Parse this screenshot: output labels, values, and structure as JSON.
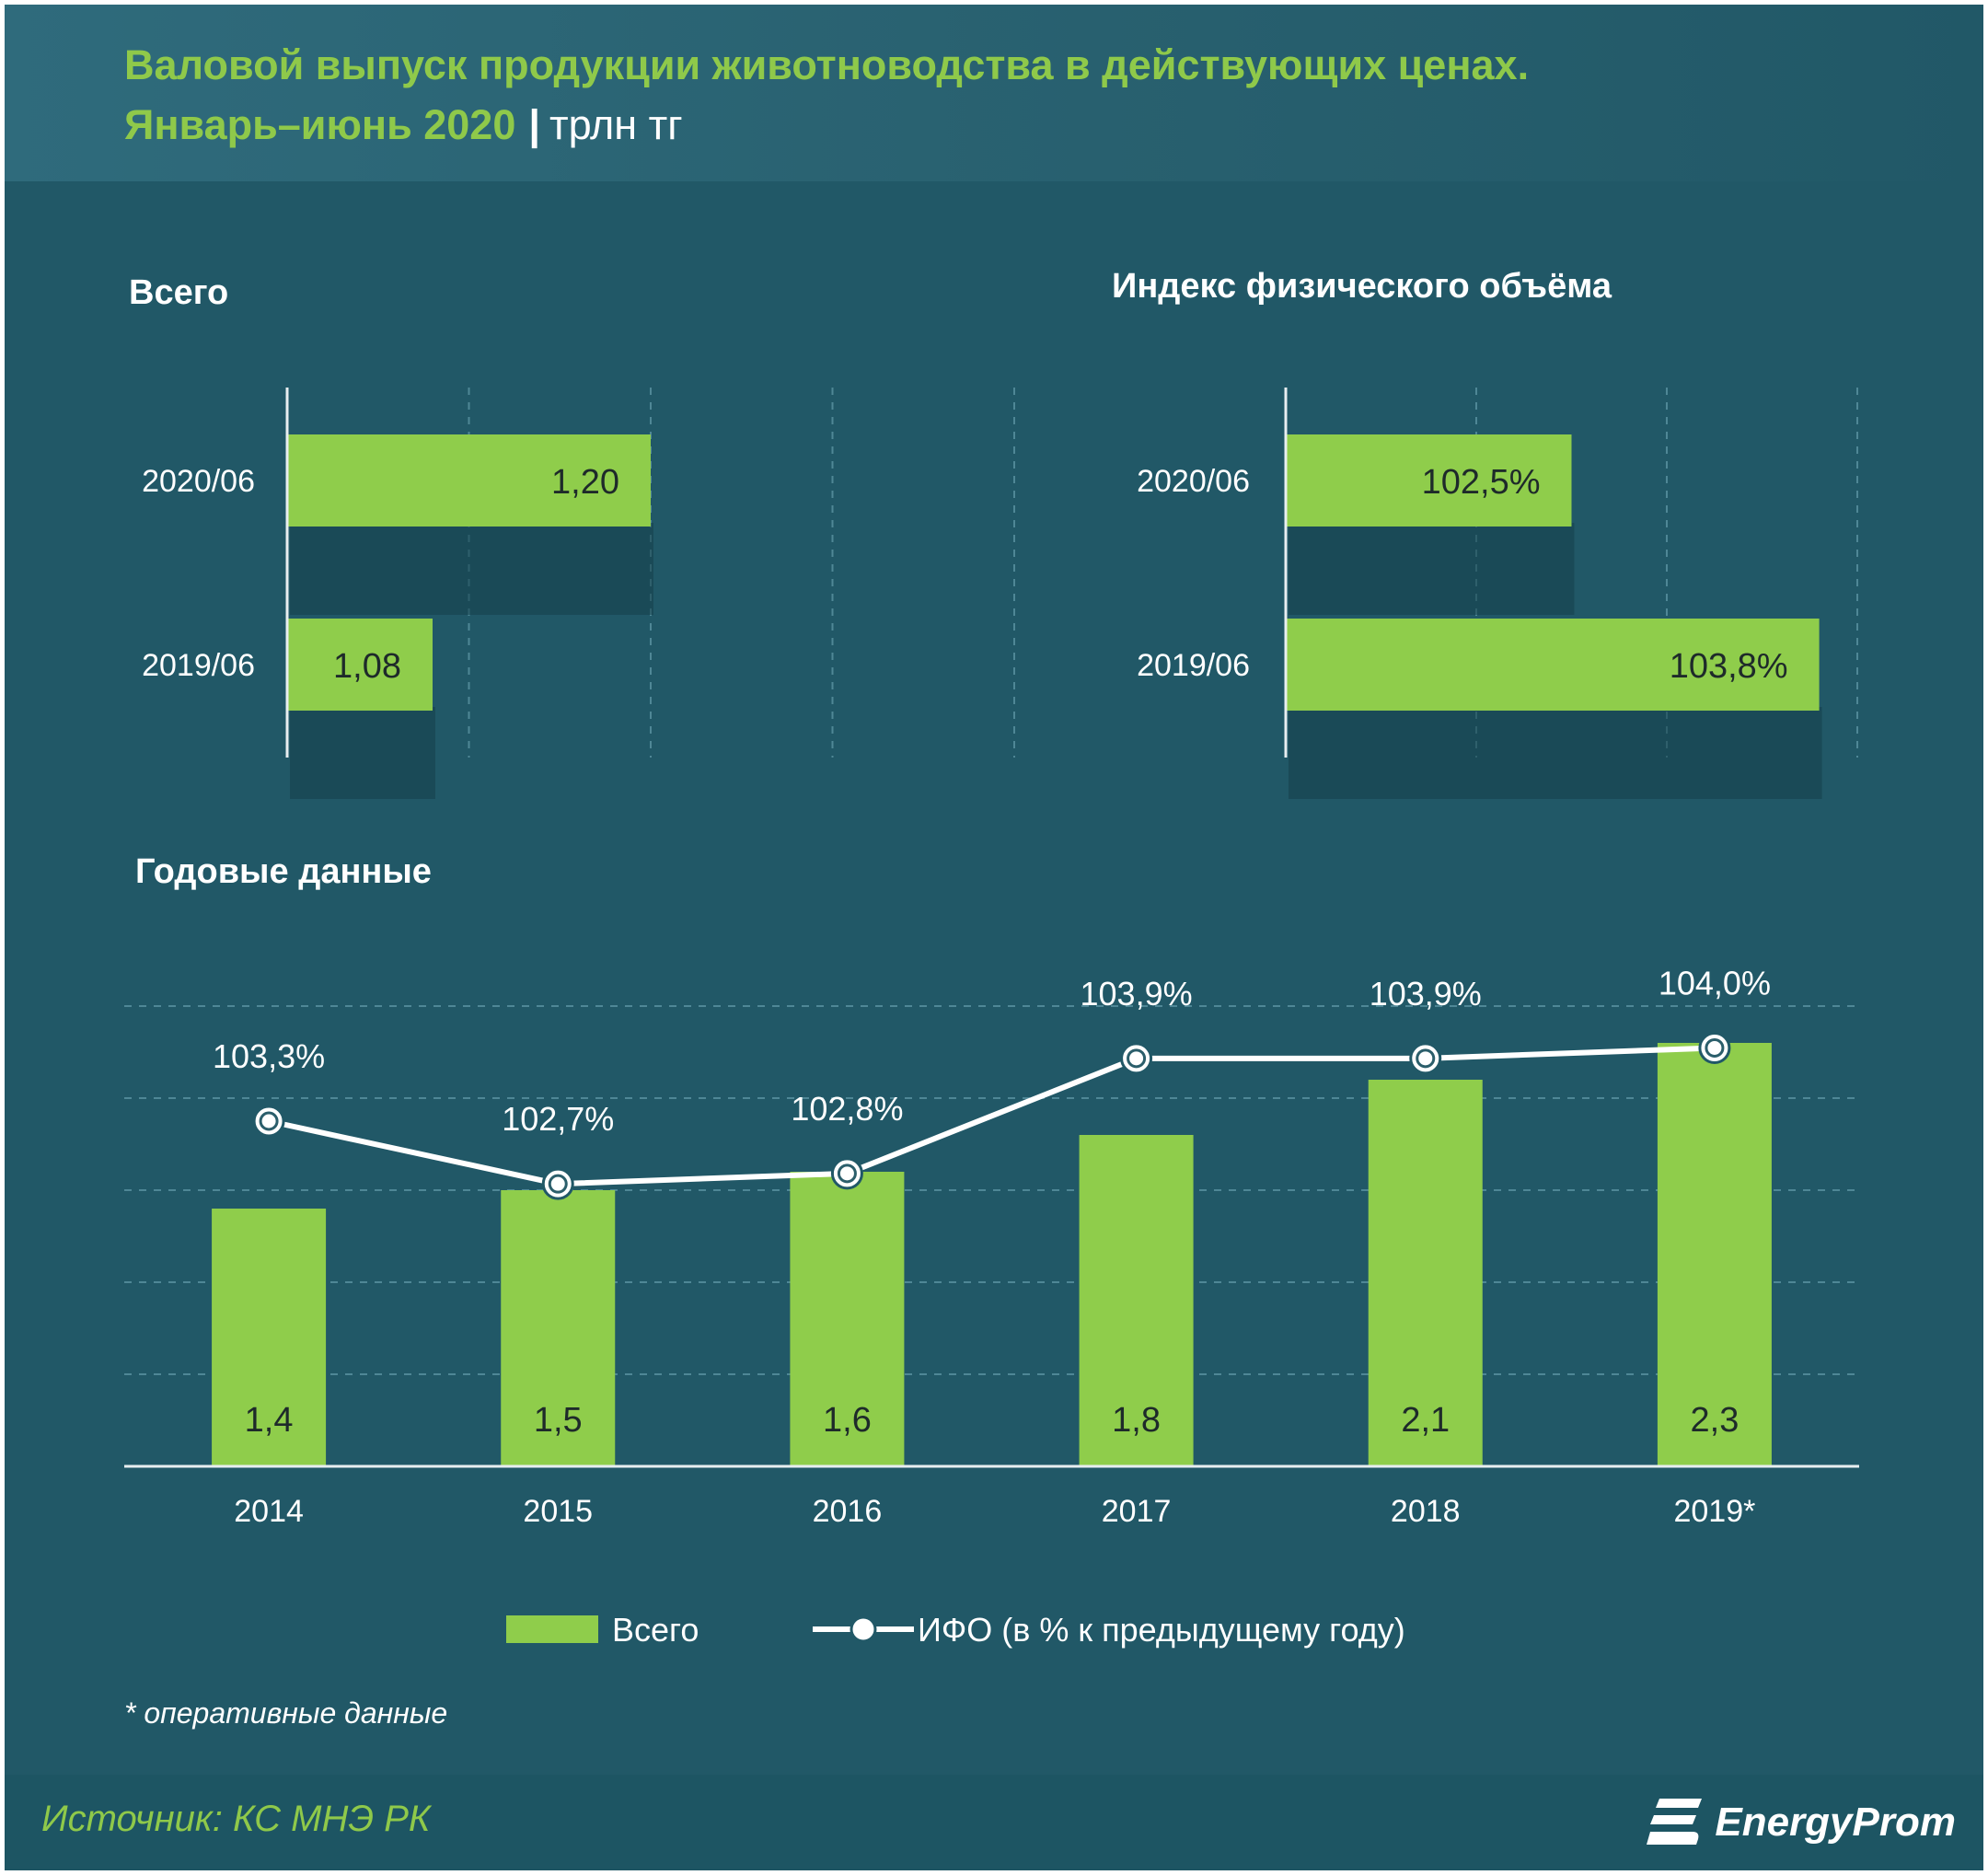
{
  "title": {
    "line1": "Валовой выпуск продукции животноводства в действующих ценах.",
    "line2_main": "Январь–июнь 2020",
    "line2_sep": "|",
    "line2_unit": "трлн тг"
  },
  "colors": {
    "background": "#215867",
    "bar": "#8fcd4b",
    "title": "#8fc94a",
    "text": "#ffffff",
    "line": "#ffffff"
  },
  "chart_data": [
    {
      "type": "bar",
      "orientation": "horizontal",
      "title": "Всего",
      "categories": [
        "2020/06",
        "2019/06"
      ],
      "values": [
        1.2,
        1.08
      ],
      "value_labels": [
        "1,20",
        "1,08"
      ],
      "xlim": [
        1.0,
        1.4
      ],
      "grid": true
    },
    {
      "type": "bar",
      "orientation": "horizontal",
      "title": "Индекс физического объёма",
      "categories": [
        "2020/06",
        "2019/06"
      ],
      "values": [
        102.5,
        103.8
      ],
      "value_labels": [
        "102,5%",
        "103,8%"
      ],
      "xlim": [
        101.0,
        104.0
      ],
      "grid": true
    },
    {
      "type": "bar+line",
      "title": "Годовые данные",
      "categories": [
        "2014",
        "2015",
        "2016",
        "2017",
        "2018",
        "2019*"
      ],
      "series": [
        {
          "name": "Всего",
          "type": "bar",
          "values": [
            1.4,
            1.5,
            1.6,
            1.8,
            2.1,
            2.3
          ],
          "value_labels": [
            "1,4",
            "1,5",
            "1,6",
            "1,8",
            "2,1",
            "2,3"
          ]
        },
        {
          "name": "ИФО (в % к предыдущему году)",
          "type": "line",
          "values": [
            103.3,
            102.7,
            102.8,
            103.9,
            103.9,
            104.0
          ],
          "value_labels": [
            "103,3%",
            "102,7%",
            "102,8%",
            "103,9%",
            "103,9%",
            "104,0%"
          ]
        }
      ],
      "ylim_bar": [
        0,
        2.5
      ],
      "ylim_line": [
        100.0,
        104.4
      ],
      "legend_position": "bottom",
      "grid": true
    }
  ],
  "footnote": "* оперативные данные",
  "source": "Источник: КС МНЭ РК",
  "brand": "EnergyProm"
}
